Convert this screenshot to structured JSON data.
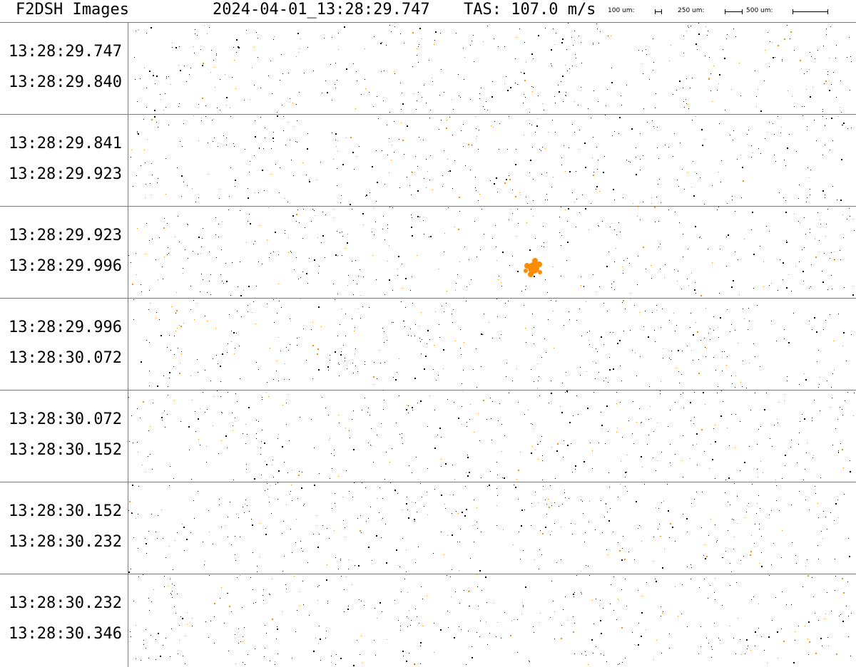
{
  "header": {
    "app_title": "F2DSH Images",
    "datetime": "2024-04-01_13:28:29.747",
    "tas": "TAS: 107.0 m/s",
    "scale_labels": [
      "100 um:",
      "250 um:",
      "500 um:"
    ]
  },
  "strips": [
    {
      "start": "13:28:29.747",
      "end": "13:28:29.840"
    },
    {
      "start": "13:28:29.841",
      "end": "13:28:29.923"
    },
    {
      "start": "13:28:29.923",
      "end": "13:28:29.996",
      "particle": "large-ice-particle"
    },
    {
      "start": "13:28:29.996",
      "end": "13:28:30.072"
    },
    {
      "start": "13:28:30.072",
      "end": "13:28:30.152"
    },
    {
      "start": "13:28:30.152",
      "end": "13:28:30.232"
    },
    {
      "start": "13:28:30.232",
      "end": "13:28:30.346"
    }
  ],
  "colors": {
    "particle_orange": "#ff8c00",
    "particle_black": "#000000",
    "divider": "#7a7a7a"
  }
}
